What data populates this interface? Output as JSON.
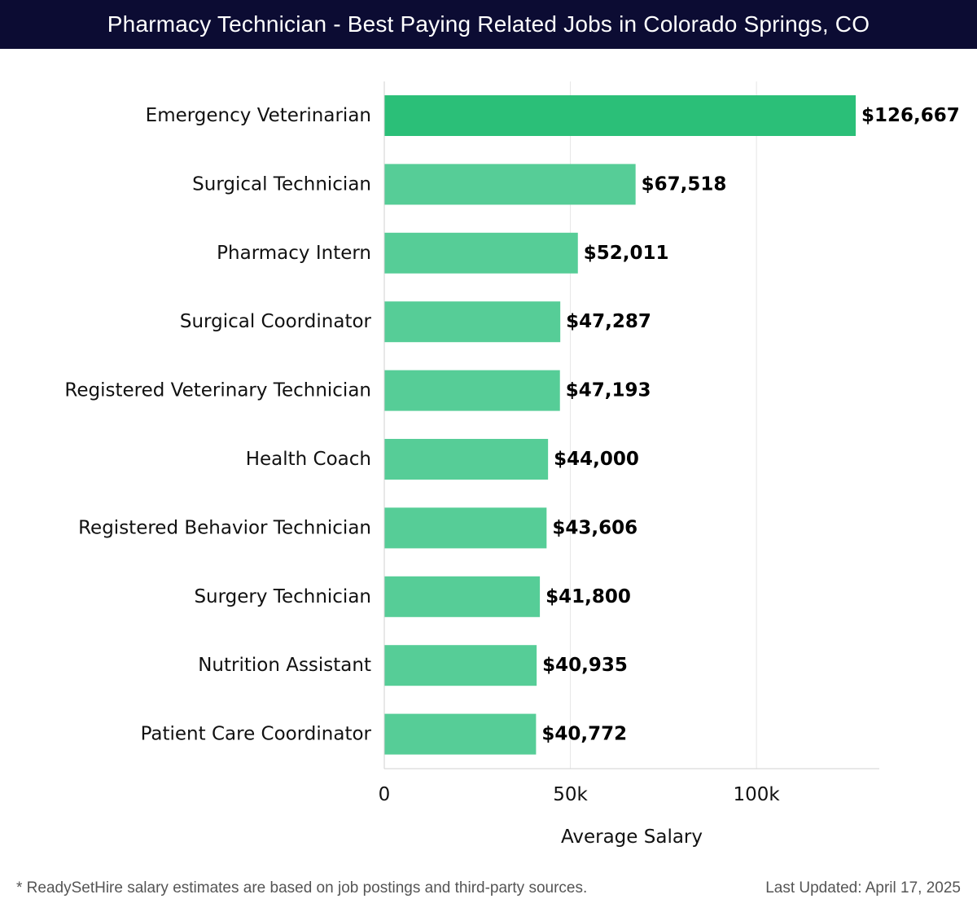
{
  "title": "Pharmacy Technician - Best Paying Related Jobs in Colorado Springs, CO",
  "footer": {
    "note": "* ReadySetHire salary estimates are based on job postings and third-party sources.",
    "updated": "Last Updated: April 17, 2025"
  },
  "colors": {
    "top_bar": "#2bbf78",
    "bar": "#56cd97",
    "title_bg": "#0c0c33",
    "grid": "#e6e6e6"
  },
  "chart_data": {
    "type": "bar",
    "orientation": "horizontal",
    "xlabel": "Average Salary",
    "ylabel": "",
    "xlim": [
      0,
      133000
    ],
    "grid": true,
    "ticks": [
      {
        "value": 0,
        "label": "0"
      },
      {
        "value": 50000,
        "label": "50k"
      },
      {
        "value": 100000,
        "label": "100k"
      }
    ],
    "categories": [
      "Emergency Veterinarian",
      "Surgical Technician",
      "Pharmacy Intern",
      "Surgical Coordinator",
      "Registered Veterinary Technician",
      "Health Coach",
      "Registered Behavior Technician",
      "Surgery Technician",
      "Nutrition Assistant",
      "Patient Care Coordinator"
    ],
    "values": [
      126667,
      67518,
      52011,
      47287,
      47193,
      44000,
      43606,
      41800,
      40935,
      40772
    ],
    "value_labels": [
      "$126,667",
      "$67,518",
      "$52,011",
      "$47,287",
      "$47,193",
      "$44,000",
      "$43,606",
      "$41,800",
      "$40,935",
      "$40,772"
    ]
  }
}
